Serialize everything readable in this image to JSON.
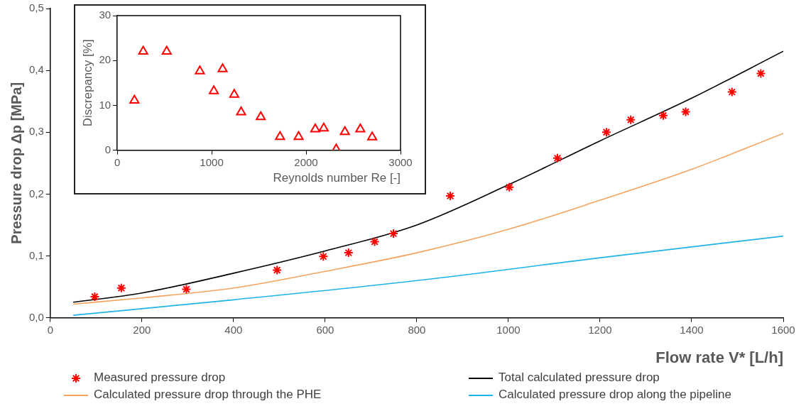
{
  "chart_data": [
    {
      "type": "line",
      "xlabel": "Flow rate V* [L/h]",
      "ylabel": "Pressure drop Δp [MPa]",
      "xlim": [
        0,
        1600
      ],
      "xticks": [
        0,
        200,
        400,
        600,
        800,
        1000,
        1200,
        1400,
        1600
      ],
      "ylim": [
        0,
        0.5
      ],
      "yticks": [
        {
          "value": 0,
          "label": "0,0"
        },
        {
          "value": 0.1,
          "label": "0,1"
        },
        {
          "value": 0.2,
          "label": "0,2"
        },
        {
          "value": 0.3,
          "label": "0,3"
        },
        {
          "value": 0.4,
          "label": "0,4"
        },
        {
          "value": 0.5,
          "label": "0,5"
        }
      ],
      "grid": false,
      "legend": "bottom",
      "series": [
        {
          "name": "Measured pressure drop",
          "type": "scatter",
          "marker": "cross",
          "color": "#ff0000",
          "x": [
            97,
            155,
            297,
            495,
            596,
            651,
            708,
            749,
            873,
            1002,
            1107,
            1214,
            1267,
            1338,
            1387,
            1488,
            1551
          ],
          "values": [
            0.034,
            0.048,
            0.046,
            0.077,
            0.099,
            0.105,
            0.123,
            0.136,
            0.197,
            0.211,
            0.258,
            0.3,
            0.32,
            0.327,
            0.333,
            0.365,
            0.395
          ]
        },
        {
          "name": "Total calculated pressure drop",
          "marker": "none",
          "color": "#000000",
          "x": [
            50,
            200,
            400,
            600,
            800,
            1000,
            1200,
            1400,
            1600
          ],
          "values": [
            0.025,
            0.04,
            0.072,
            0.108,
            0.15,
            0.215,
            0.286,
            0.355,
            0.431
          ]
        },
        {
          "name": "Calculated pressure drop through the PHE",
          "marker": "none",
          "color": "#f4a460",
          "x": [
            50,
            200,
            400,
            600,
            800,
            1000,
            1200,
            1400,
            1600
          ],
          "values": [
            0.022,
            0.032,
            0.048,
            0.075,
            0.105,
            0.143,
            0.19,
            0.24,
            0.298
          ]
        },
        {
          "name": "Calculated pressure drop along the pipeline",
          "marker": "none",
          "color": "#1fb3e8",
          "x": [
            50,
            400,
            800,
            1200,
            1600
          ],
          "values": [
            0.004,
            0.029,
            0.06,
            0.097,
            0.132
          ]
        }
      ]
    },
    {
      "type": "scatter",
      "xlabel": "Reynolds number Re [-]",
      "ylabel": "Discrepancy [%]",
      "xlim": [
        0,
        3000
      ],
      "xticks": [
        0,
        1000,
        2000,
        3000
      ],
      "ylim": [
        0,
        30
      ],
      "yticks": [
        0,
        10,
        20,
        30
      ],
      "grid": false,
      "marker": "triangle",
      "series": [
        {
          "color": "#ff0000",
          "x": [
            182,
            275,
            524,
            875,
            1116,
            1023,
            1239,
            1312,
            1520,
            1724,
            1921,
            2097,
            2187,
            2319,
            2411,
            2574,
            2700
          ],
          "values": [
            11.1,
            22.0,
            22.0,
            17.6,
            18.1,
            13.2,
            12.4,
            8.5,
            7.4,
            3.0,
            3.0,
            4.7,
            4.9,
            0.2,
            4.1,
            4.7,
            2.9
          ]
        }
      ]
    }
  ]
}
